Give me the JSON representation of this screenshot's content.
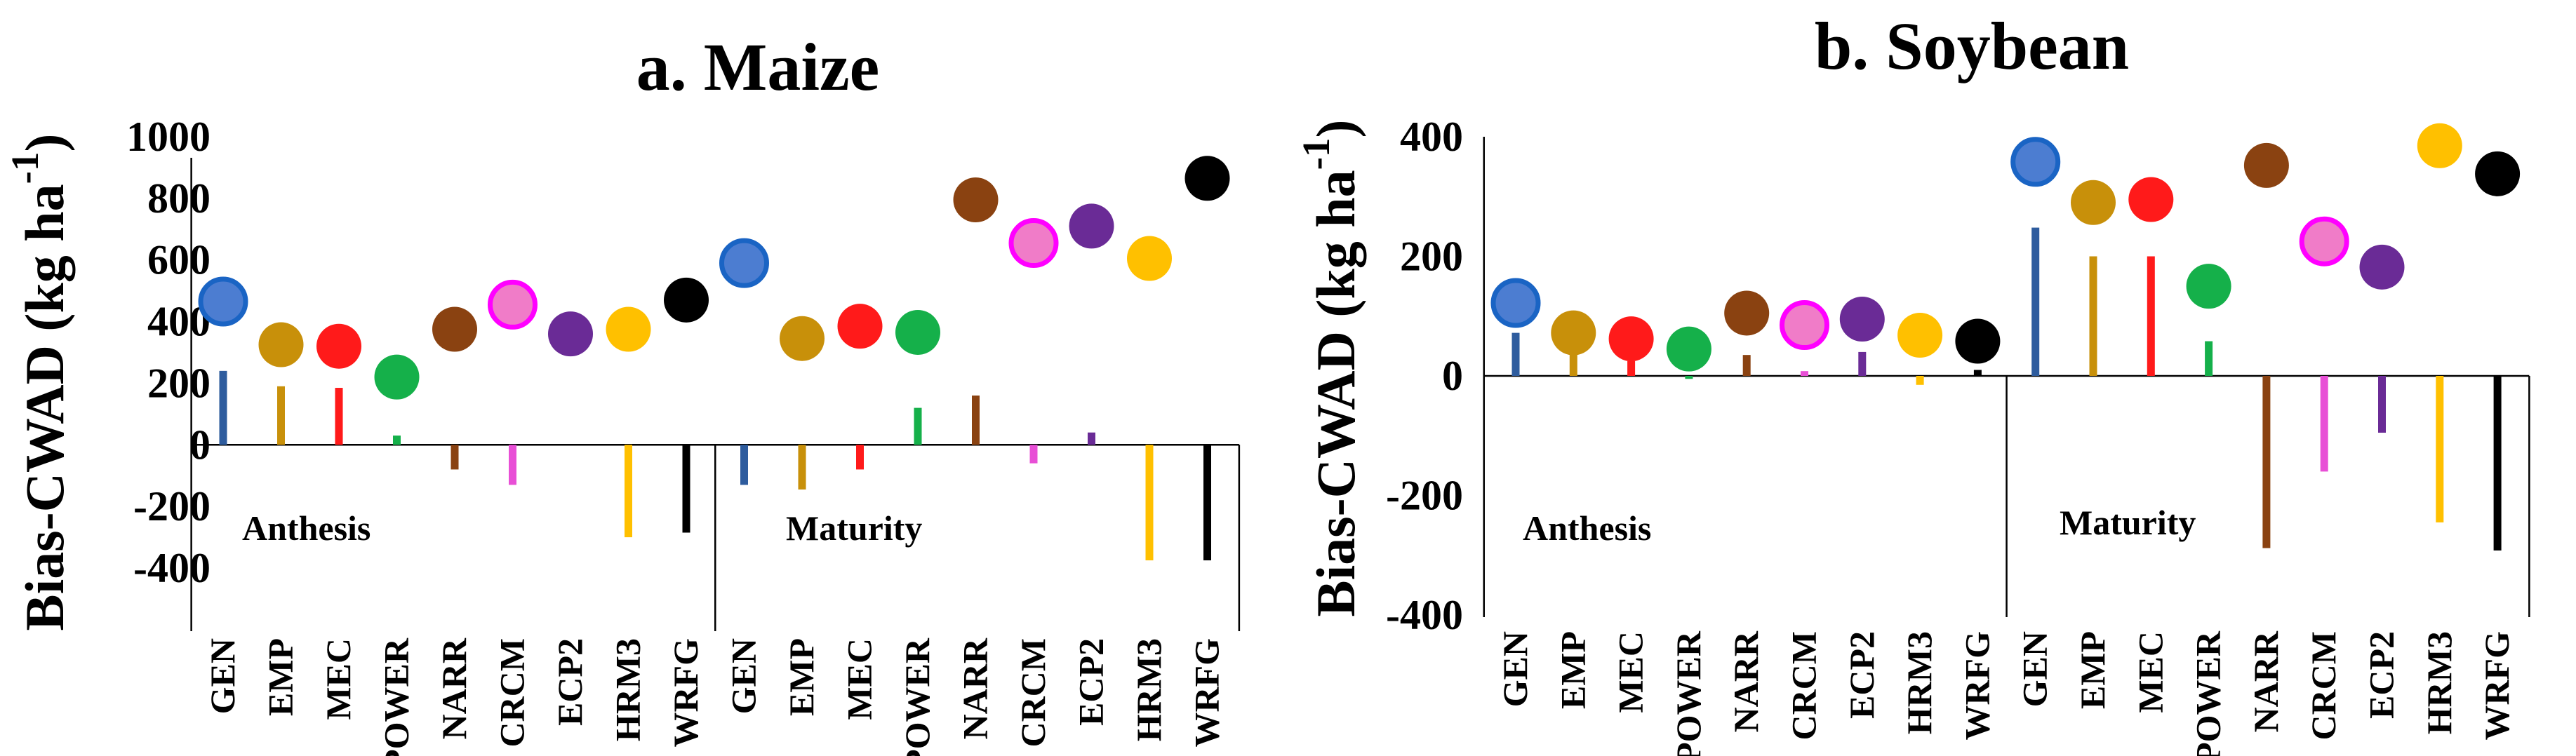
{
  "chart_data": [
    {
      "type": "bar+dot",
      "title": "a. Maize",
      "ylabel": "Bias-CWAD  (kg ha",
      "ylabel_sup": "-1",
      "ylabel_close": ")",
      "ylim": [
        -400,
        1000
      ],
      "yticks": [
        1000,
        800,
        600,
        400,
        200,
        0,
        -200,
        -400
      ],
      "groups": [
        {
          "name": "Anthesis",
          "categories": [
            "GEN",
            "EMP",
            "MEC",
            "POWER",
            "NARR",
            "CRCM",
            "ECP2",
            "HRM3",
            "WRFG"
          ],
          "bar_values": [
            240,
            190,
            185,
            30,
            -80,
            -130,
            0,
            -300,
            -285
          ],
          "dot_values": [
            465,
            325,
            320,
            220,
            375,
            455,
            360,
            375,
            470
          ]
        },
        {
          "name": "Maturity",
          "categories": [
            "GEN",
            "EMP",
            "MEC",
            "POWER",
            "NARR",
            "CRCM",
            "ECP2",
            "HRM3",
            "WRFG"
          ],
          "bar_values": [
            -130,
            -145,
            -80,
            120,
            160,
            -60,
            40,
            -375,
            -375
          ],
          "dot_values": [
            590,
            345,
            385,
            365,
            795,
            655,
            710,
            605,
            865
          ]
        }
      ]
    },
    {
      "type": "bar+dot",
      "title": "b. Soybean",
      "ylabel": "Bias-CWAD  (kg ha",
      "ylabel_sup": "-1",
      "ylabel_close": ")",
      "ylim": [
        -400,
        400
      ],
      "yticks": [
        400,
        200,
        0,
        -200,
        -400
      ],
      "groups": [
        {
          "name": "Anthesis",
          "categories": [
            "GEN",
            "EMP",
            "MEC",
            "POWER",
            "NARR",
            "CRCM",
            "ECP2",
            "HRM3",
            "WRFG"
          ],
          "bar_values": [
            72,
            45,
            25,
            -5,
            35,
            8,
            40,
            -15,
            10
          ],
          "dot_values": [
            122,
            72,
            62,
            45,
            105,
            85,
            95,
            68,
            58
          ]
        },
        {
          "name": "Maturity",
          "categories": [
            "GEN",
            "EMP",
            "MEC",
            "POWER",
            "NARR",
            "CRCM",
            "ECP2",
            "HRM3",
            "WRFG"
          ],
          "bar_values": [
            248,
            200,
            200,
            58,
            -288,
            -160,
            -95,
            -245,
            -292
          ],
          "dot_values": [
            358,
            290,
            295,
            150,
            352,
            225,
            182,
            385,
            338
          ]
        }
      ]
    }
  ],
  "series_colors": {
    "GEN": "#2e5c9e",
    "EMP": "#c8900a",
    "MEC": "#ff1a1a",
    "POWER": "#15b04a",
    "NARR": "#8a4211",
    "CRCM": "#e84fd6",
    "ECP2": "#6a2b96",
    "HRM3": "#ffc000",
    "WRFG": "#000000"
  },
  "dot_colors": {
    "GEN": "#4c7dd1",
    "EMP": "#c8900a",
    "MEC": "#ff1a1a",
    "POWER": "#15b04a",
    "NARR": "#8a4211",
    "CRCM": "#f07cc8",
    "ECP2": "#6a2b96",
    "HRM3": "#ffc000",
    "WRFG": "#000000"
  },
  "dot_ring_colors": {
    "GEN": "#1a64c4",
    "CRCM": "#ff00ff"
  }
}
